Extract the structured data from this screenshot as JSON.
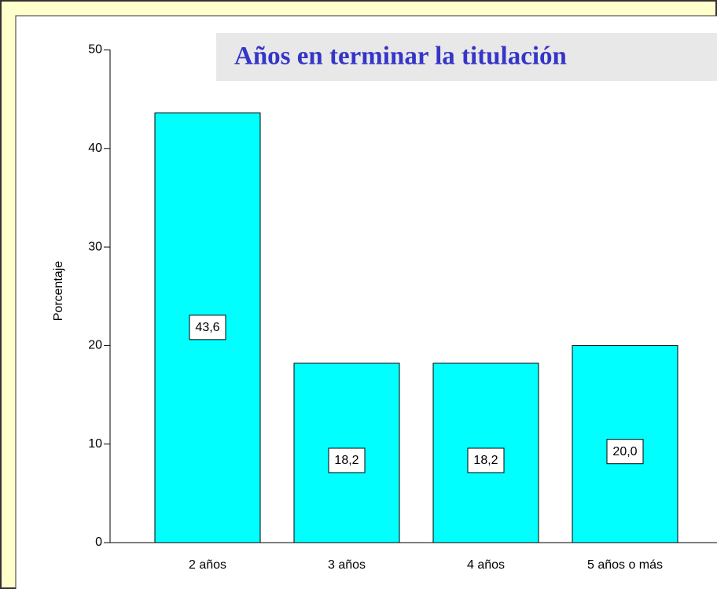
{
  "chart_data": {
    "type": "bar",
    "title": "Años en terminar la titulación",
    "y_label": "Porcentaje",
    "categories": [
      "2 años",
      "3 años",
      "4 años",
      "5 años o más"
    ],
    "values": [
      43.6,
      18.2,
      18.2,
      20.0
    ],
    "value_labels": [
      "43,6",
      "18,2",
      "18,2",
      "20,0"
    ],
    "color": "#00ffff",
    "ylim": [
      0,
      50
    ],
    "yticks": [
      0,
      10,
      20,
      30,
      40,
      50
    ],
    "grid": false
  }
}
